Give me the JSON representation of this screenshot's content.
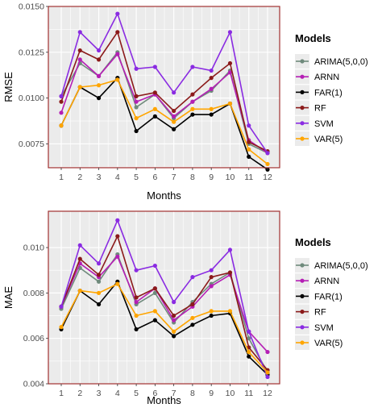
{
  "chart_data": [
    {
      "type": "line",
      "xlabel": "Months",
      "ylabel": "RMSE",
      "x": [
        1,
        2,
        3,
        4,
        5,
        6,
        7,
        8,
        9,
        10,
        11,
        12
      ],
      "ylim": [
        0.0062,
        0.015
      ],
      "yticks": [
        0.0075,
        0.01,
        0.0125,
        0.015
      ],
      "ytick_labels": [
        "0.0075",
        "0.0100",
        "0.0125",
        "0.0150"
      ],
      "xtick_labels": [
        "1",
        "2",
        "3",
        "4",
        "5",
        "6",
        "7",
        "8",
        "9",
        "10",
        "11",
        "12"
      ],
      "grid": true,
      "legend_title": "Models",
      "legend_position": "right",
      "series": [
        {
          "name": "ARIMA(5,0,0)",
          "color": "#6f8a7c",
          "values": [
            0.0101,
            0.0119,
            0.0112,
            0.0125,
            0.0095,
            0.0102,
            0.0089,
            0.0098,
            0.0104,
            0.0115,
            0.0075,
            0.007
          ]
        },
        {
          "name": "ARNN",
          "color": "#b51eb5",
          "values": [
            0.0092,
            0.0121,
            0.0112,
            0.0124,
            0.0098,
            0.0102,
            0.009,
            0.0098,
            0.0105,
            0.0114,
            0.0077,
            0.007
          ]
        },
        {
          "name": "FAR(1)",
          "color": "#000000",
          "values": [
            0.0085,
            0.0106,
            0.01,
            0.0111,
            0.0082,
            0.009,
            0.0083,
            0.0091,
            0.0091,
            0.0097,
            0.0068,
            0.0061
          ]
        },
        {
          "name": "RF",
          "color": "#8b1a1a",
          "values": [
            0.0098,
            0.0126,
            0.0121,
            0.0136,
            0.0101,
            0.0103,
            0.0093,
            0.0102,
            0.0111,
            0.0119,
            0.0076,
            0.0071
          ]
        },
        {
          "name": "SVM",
          "color": "#8a2be2",
          "values": [
            0.0101,
            0.0136,
            0.0126,
            0.0146,
            0.0116,
            0.0117,
            0.0103,
            0.0117,
            0.0115,
            0.0136,
            0.0085,
            0.007
          ]
        },
        {
          "name": "VAR(5)",
          "color": "#ffa500",
          "values": [
            0.0085,
            0.0106,
            0.0107,
            0.011,
            0.0089,
            0.0094,
            0.0087,
            0.0094,
            0.0094,
            0.0097,
            0.0072,
            0.0064
          ]
        }
      ]
    },
    {
      "type": "line",
      "xlabel": "Months",
      "ylabel": "MAE",
      "x": [
        1,
        2,
        3,
        4,
        5,
        6,
        7,
        8,
        9,
        10,
        11,
        12
      ],
      "ylim": [
        0.004,
        0.0116
      ],
      "yticks": [
        0.004,
        0.006,
        0.008,
        0.01
      ],
      "ytick_labels": [
        "0.004",
        "0.006",
        "0.008",
        "0.010"
      ],
      "xtick_labels": [
        "1",
        "2",
        "3",
        "4",
        "5",
        "6",
        "7",
        "8",
        "9",
        "10",
        "11",
        "12"
      ],
      "grid": true,
      "legend_title": "Models",
      "legend_position": "right",
      "series": [
        {
          "name": "ARIMA(5,0,0)",
          "color": "#6f8a7c",
          "values": [
            0.0073,
            0.0091,
            0.0085,
            0.0097,
            0.0075,
            0.008,
            0.0067,
            0.0076,
            0.0084,
            0.0089,
            0.006,
            0.0045
          ]
        },
        {
          "name": "ARNN",
          "color": "#b51eb5",
          "values": [
            0.0074,
            0.0093,
            0.0087,
            0.0096,
            0.0076,
            0.0082,
            0.0068,
            0.0074,
            0.0083,
            0.0088,
            0.0063,
            0.0054
          ]
        },
        {
          "name": "FAR(1)",
          "color": "#000000",
          "values": [
            0.0064,
            0.0081,
            0.0075,
            0.0085,
            0.0064,
            0.0068,
            0.0061,
            0.0066,
            0.007,
            0.0071,
            0.0052,
            0.0044
          ]
        },
        {
          "name": "RF",
          "color": "#8b1a1a",
          "values": [
            0.0074,
            0.0095,
            0.0088,
            0.0105,
            0.0078,
            0.0082,
            0.007,
            0.0075,
            0.0087,
            0.0089,
            0.0056,
            0.0046
          ]
        },
        {
          "name": "SVM",
          "color": "#8a2be2",
          "values": [
            0.0074,
            0.0101,
            0.0093,
            0.0112,
            0.009,
            0.0092,
            0.0076,
            0.0087,
            0.009,
            0.0099,
            0.0063,
            0.0043
          ]
        },
        {
          "name": "VAR(5)",
          "color": "#ffa500",
          "values": [
            0.0065,
            0.0081,
            0.008,
            0.0084,
            0.007,
            0.0072,
            0.0063,
            0.0069,
            0.0072,
            0.0072,
            0.0054,
            0.0045
          ]
        }
      ]
    }
  ],
  "colors": {
    "panel_background": "#ebebeb",
    "gridline": "#ffffff",
    "panel_border": "#a03030"
  }
}
